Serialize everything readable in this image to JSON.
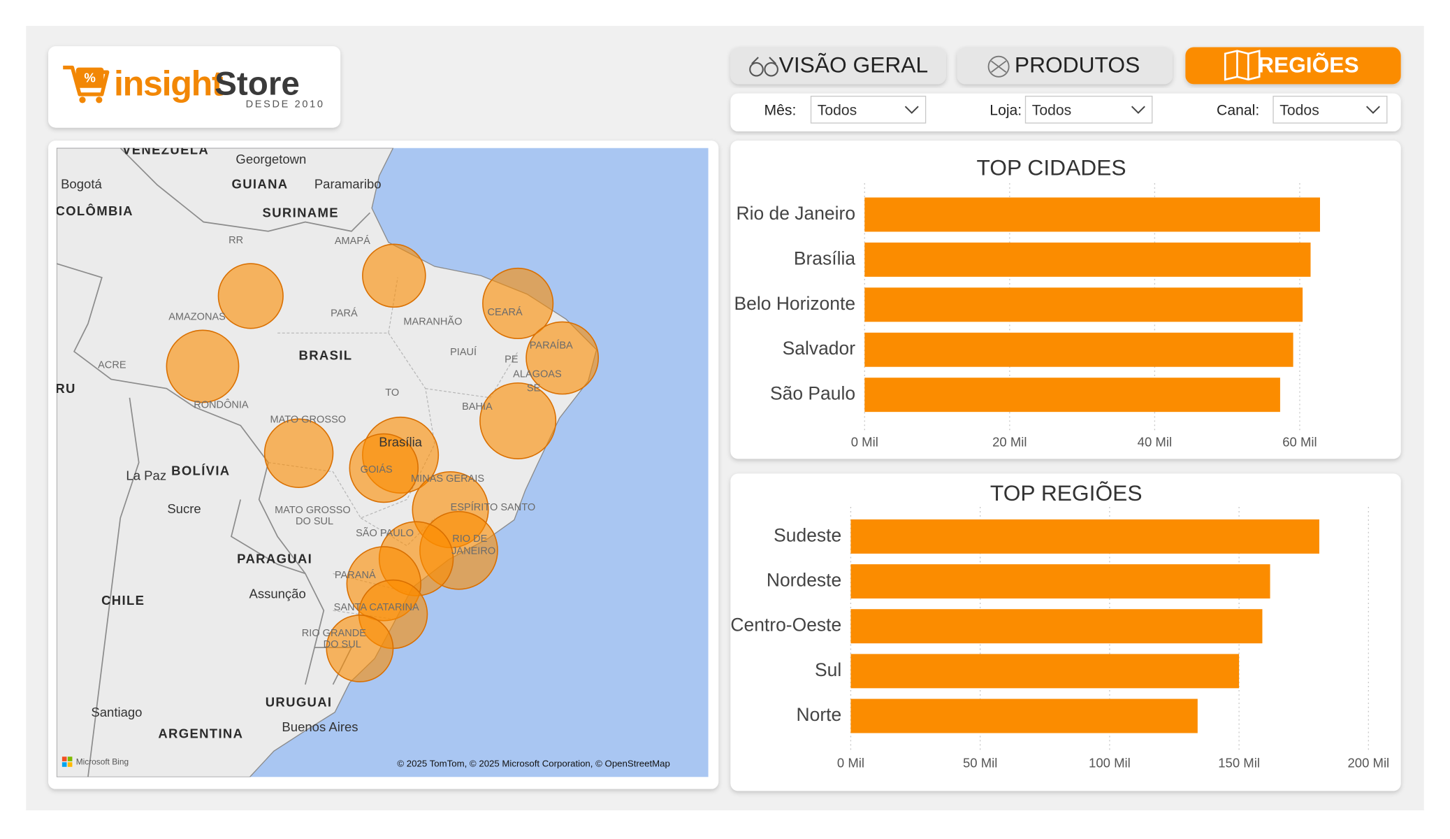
{
  "header": {
    "logo_badge": "%",
    "logo_brand_a": "insight",
    "logo_brand_b": "Store",
    "logo_tagline": "DESDE 2010"
  },
  "tabs": [
    "VISÃO GERAL",
    "PRODUTOS",
    "REGIÕES"
  ],
  "filters": [
    {
      "label": "Mês:",
      "value": "Todos"
    },
    {
      "label": "Loja:",
      "value": "Todos"
    },
    {
      "label": "Canal:",
      "value": "Todos"
    }
  ],
  "map": {
    "labels": [
      "VENEZUELA",
      "Georgetown",
      "GUIANA",
      "Paramaribo",
      "SURINAME",
      "Bogotá",
      "COLÔMBIA",
      "RR",
      "AMAPÁ",
      "AMAZONAS",
      "PARÁ",
      "MARANHÃO",
      "CEARÁ",
      "PARAÍBA",
      "PIAUÍ",
      "PE",
      "ALAGOAS",
      "SE",
      "BRASIL",
      "ACRE",
      "PERU",
      "RONDÔNIA",
      "TO",
      "BAHIA",
      "MATO GROSSO",
      "Brasília",
      "GOIÁS",
      "MINAS GERAIS",
      "ESPÍRITO SANTO",
      "La Paz",
      "BOLÍVIA",
      "Sucre",
      "MATO GROSSO",
      "DO SUL",
      "SÃO PAULO",
      "RIO DE",
      "JANEIRO",
      "PARAGUAI",
      "PARANÁ",
      "Assunção",
      "SANTA CATARINA",
      "CHILE",
      "RIO GRANDE",
      "DO SUL",
      "URUGUAI",
      "Santiago",
      "ARGENTINA",
      "Buenos Aires"
    ],
    "provider": "Microsoft Bing",
    "attribution": "© 2025 TomTom, © 2025 Microsoft Corporation, © OpenStreetMap"
  },
  "chart_data": [
    {
      "type": "bar",
      "orientation": "horizontal",
      "title": "TOP CIDADES",
      "categories": [
        "Rio de Janeiro",
        "Brasília",
        "Belo Horizonte",
        "Salvador",
        "São Paulo"
      ],
      "values": [
        62.8,
        61.5,
        60.4,
        59.1,
        57.3
      ],
      "color": "#fb8c00",
      "xlim": [
        0,
        64
      ],
      "xticks": [
        {
          "value": 0,
          "label": "0 Mil"
        },
        {
          "value": 20,
          "label": "20 Mil"
        },
        {
          "value": 40,
          "label": "40 Mil"
        },
        {
          "value": 60,
          "label": "60 Mil"
        }
      ],
      "grid": true
    },
    {
      "type": "bar",
      "orientation": "horizontal",
      "title": "TOP REGIÕES",
      "categories": [
        "Sudeste",
        "Nordeste",
        "Centro-Oeste",
        "Sul",
        "Norte"
      ],
      "values": [
        181,
        162,
        159,
        150,
        134
      ],
      "color": "#fb8c00",
      "xlim": [
        0,
        200
      ],
      "xticks": [
        {
          "value": 0,
          "label": "0 Mil"
        },
        {
          "value": 50,
          "label": "50 Mil"
        },
        {
          "value": 100,
          "label": "100 Mil"
        },
        {
          "value": 150,
          "label": "150 Mil"
        },
        {
          "value": 200,
          "label": "200 Mil"
        }
      ],
      "grid": true
    }
  ]
}
